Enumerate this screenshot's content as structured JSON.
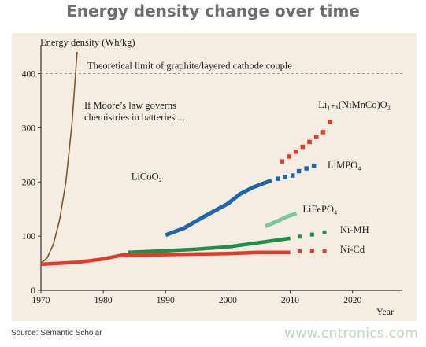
{
  "header": {
    "title": "Energy density change over time"
  },
  "footer": {
    "source": "Source: Semantic Scholar",
    "watermark": "www.cntronics.com"
  },
  "colors": {
    "axis": "#333333",
    "background": "#f5ede2",
    "moore": "#7a5a2a",
    "licoo2": "#1f66b0",
    "lifepo4": "#7ac79b",
    "nimh": "#1e8e4a",
    "nicd": "#e43a2a",
    "limit_line": "#9a9a9a"
  },
  "chart_data": {
    "type": "line",
    "title": "Energy density change over time",
    "ylabel": "Energy density (Wh/kg)",
    "xlabel": "Year",
    "xlim": [
      1970,
      2028
    ],
    "ylim": [
      0,
      440
    ],
    "x_ticks": [
      1970,
      1980,
      1990,
      2000,
      2010,
      2020
    ],
    "y_ticks": [
      0,
      100,
      200,
      300,
      400
    ],
    "reference_line": {
      "y": 400,
      "label": "Theoretical limit of graphite/layered cathode couple"
    },
    "annotation": {
      "lines": [
        "If Moore’s law governs",
        "chemistries in batteries ..."
      ]
    },
    "series": [
      {
        "key": "moore",
        "color": "#7a5a2a",
        "solid": [
          [
            1970,
            50
          ],
          [
            1971,
            60
          ],
          [
            1972,
            85
          ],
          [
            1973,
            130
          ],
          [
            1974,
            200
          ],
          [
            1975,
            310
          ],
          [
            1975.8,
            440
          ]
        ],
        "projected": []
      },
      {
        "key": "licoo2",
        "name": "LiCoO₂",
        "color": "#1f66b0",
        "solid": [
          [
            1990,
            102
          ],
          [
            1993,
            115
          ],
          [
            1996,
            135
          ],
          [
            2000,
            160
          ],
          [
            2002,
            178
          ],
          [
            2004,
            190
          ],
          [
            2007,
            203
          ]
        ],
        "projected": [
          [
            2008,
            206
          ],
          [
            2009.2,
            209
          ],
          [
            2010.4,
            212
          ]
        ]
      },
      {
        "key": "limpo4",
        "name": "LiMPO₄",
        "color": "#1f66b0",
        "solid": [],
        "projected": [
          [
            2011.4,
            220
          ],
          [
            2012.6,
            225
          ],
          [
            2013.8,
            230
          ]
        ]
      },
      {
        "key": "lifepo4",
        "name": "LiFePO₄",
        "color": "#7ac79b",
        "solid": [
          [
            2006,
            118
          ],
          [
            2008,
            128
          ],
          [
            2009.5,
            136
          ],
          [
            2011,
            142
          ]
        ],
        "projected": []
      },
      {
        "key": "limnco",
        "name": "Li₁₊ₓ(NiMnCo)O₂",
        "color": "#e43a2a",
        "solid": [],
        "projected": [
          [
            2008.7,
            238
          ],
          [
            2009.8,
            247
          ],
          [
            2010.9,
            256
          ],
          [
            2012.0,
            265
          ],
          [
            2013.1,
            274
          ],
          [
            2014.2,
            283
          ],
          [
            2015.3,
            292
          ],
          [
            2016.4,
            311
          ]
        ]
      },
      {
        "key": "nimh",
        "name": "Ni-MH",
        "color": "#1e8e4a",
        "solid": [
          [
            1984,
            70
          ],
          [
            1990,
            73
          ],
          [
            1995,
            76
          ],
          [
            2000,
            80
          ],
          [
            2005,
            88
          ],
          [
            2010,
            96
          ]
        ],
        "projected": [
          [
            2011.5,
            99
          ],
          [
            2013.5,
            103
          ],
          [
            2015.5,
            107
          ]
        ]
      },
      {
        "key": "nicd",
        "name": "Ni-Cd",
        "color": "#e43a2a",
        "solid": [
          [
            1970,
            48
          ],
          [
            1976,
            52
          ],
          [
            1980,
            58
          ],
          [
            1983,
            65
          ],
          [
            1990,
            66
          ],
          [
            2000,
            68
          ],
          [
            2005,
            70
          ],
          [
            2010,
            70
          ]
        ],
        "projected": [
          [
            2011.5,
            72
          ],
          [
            2013.5,
            73
          ],
          [
            2015.5,
            73
          ]
        ]
      }
    ],
    "labels": [
      {
        "key": "licoo2",
        "text": "LiCoO₂",
        "x": 1984.5,
        "y": 204
      },
      {
        "key": "limpo4",
        "text": "LiMPO₄",
        "x": 2016,
        "y": 225
      },
      {
        "key": "lifepo4",
        "text": "LiFePO₄",
        "x": 2012,
        "y": 144
      },
      {
        "key": "limnco",
        "text": "Li₁₊ₓ(NiMnCo)O₂",
        "x": 2014.5,
        "y": 337
      },
      {
        "key": "nimh",
        "text": "Ni-MH",
        "x": 2018,
        "y": 106
      },
      {
        "key": "nicd",
        "text": "Ni-Cd",
        "x": 2018,
        "y": 70
      }
    ]
  }
}
